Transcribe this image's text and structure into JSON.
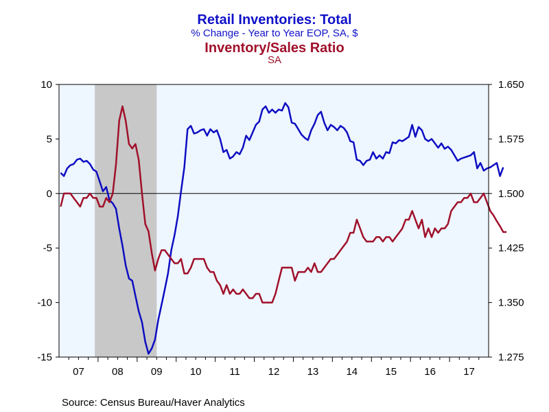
{
  "title": "Retail Inventories: Total",
  "subtitle": "% Change - Year to Year    EOP, SA, $",
  "title2": "Inventory/Sales Ratio",
  "subtitle2": "SA",
  "source": "Source:  Census Bureau/Haver Analytics",
  "colors": {
    "series1": "#0d0dc2",
    "series2": "#a0102a",
    "plot_bg": "#eef6ff",
    "recession": "#c8c8c8"
  },
  "chart_data": {
    "type": "line",
    "title": "Retail Inventories: Total",
    "x_tick_labels": [
      "07",
      "08",
      "09",
      "10",
      "11",
      "12",
      "13",
      "14",
      "15",
      "16",
      "17"
    ],
    "y_left": {
      "ticks": [
        10,
        5,
        0,
        -5,
        -10,
        -15
      ],
      "range": [
        -15,
        10
      ]
    },
    "y_right": {
      "ticks": [
        "1.650",
        "1.575",
        "1.500",
        "1.425",
        "1.350",
        "1.275"
      ],
      "range": [
        1.275,
        1.65
      ]
    },
    "recession": {
      "start": "2007-12",
      "end": "2009-06"
    },
    "start_month": "2007-01",
    "series": [
      {
        "name": "Retail Inventories: Total",
        "axis": "left",
        "values": [
          1.9,
          1.6,
          2.3,
          2.6,
          2.7,
          3.1,
          3.2,
          2.9,
          3.0,
          2.7,
          2.2,
          2.0,
          1.1,
          0.2,
          0.6,
          -0.6,
          -0.9,
          -1.4,
          -3.2,
          -4.8,
          -6.6,
          -7.8,
          -8.0,
          -9.4,
          -10.8,
          -11.8,
          -13.6,
          -14.7,
          -14.2,
          -13.4,
          -11.6,
          -10.2,
          -8.8,
          -7.3,
          -5.2,
          -3.8,
          -2.1,
          0.2,
          2.4,
          5.9,
          6.2,
          5.5,
          5.6,
          5.8,
          5.9,
          5.3,
          5.9,
          5.6,
          5.8,
          5.0,
          3.8,
          4.0,
          3.2,
          3.4,
          3.8,
          3.6,
          4.2,
          5.3,
          4.9,
          5.6,
          6.3,
          6.6,
          7.7,
          8.0,
          7.4,
          7.7,
          7.4,
          7.7,
          7.6,
          8.3,
          7.9,
          6.5,
          6.4,
          5.9,
          5.4,
          5.1,
          4.9,
          5.8,
          6.4,
          7.2,
          7.5,
          6.5,
          5.8,
          6.3,
          6.1,
          5.8,
          6.2,
          6.0,
          5.6,
          4.8,
          4.7,
          3.1,
          3.0,
          2.6,
          3.0,
          3.1,
          3.8,
          3.2,
          3.5,
          3.2,
          3.8,
          3.7,
          4.7,
          4.6,
          4.9,
          4.8,
          5.0,
          5.2,
          6.3,
          5.2,
          6.1,
          5.8,
          5.0,
          4.8,
          5.0,
          4.6,
          4.2,
          4.6,
          4.1,
          4.3,
          4.0,
          3.5,
          3.0,
          3.2,
          3.3,
          3.4,
          3.5,
          3.8,
          2.3,
          2.8,
          2.1,
          2.3,
          2.4,
          2.6,
          2.8,
          1.6,
          2.4
        ]
      },
      {
        "name": "Inventory/Sales Ratio",
        "axis": "right",
        "values": [
          1.482,
          1.5,
          1.5,
          1.5,
          1.494,
          1.488,
          1.482,
          1.494,
          1.494,
          1.5,
          1.494,
          1.494,
          1.482,
          1.482,
          1.494,
          1.488,
          1.5,
          1.54,
          1.6,
          1.62,
          1.6,
          1.568,
          1.562,
          1.568,
          1.546,
          1.5,
          1.458,
          1.448,
          1.418,
          1.394,
          1.41,
          1.422,
          1.422,
          1.416,
          1.41,
          1.404,
          1.404,
          1.41,
          1.39,
          1.39,
          1.398,
          1.41,
          1.41,
          1.41,
          1.41,
          1.398,
          1.392,
          1.392,
          1.38,
          1.374,
          1.362,
          1.374,
          1.362,
          1.368,
          1.362,
          1.362,
          1.368,
          1.362,
          1.356,
          1.356,
          1.362,
          1.362,
          1.35,
          1.35,
          1.35,
          1.35,
          1.362,
          1.38,
          1.398,
          1.398,
          1.398,
          1.398,
          1.38,
          1.392,
          1.392,
          1.392,
          1.398,
          1.392,
          1.404,
          1.392,
          1.392,
          1.398,
          1.404,
          1.41,
          1.41,
          1.416,
          1.422,
          1.428,
          1.434,
          1.446,
          1.446,
          1.464,
          1.452,
          1.44,
          1.434,
          1.434,
          1.434,
          1.44,
          1.44,
          1.434,
          1.44,
          1.44,
          1.434,
          1.44,
          1.446,
          1.452,
          1.464,
          1.464,
          1.476,
          1.464,
          1.452,
          1.464,
          1.44,
          1.452,
          1.44,
          1.452,
          1.446,
          1.452,
          1.452,
          1.458,
          1.476,
          1.482,
          1.488,
          1.488,
          1.494,
          1.494,
          1.5,
          1.488,
          1.488,
          1.494,
          1.5,
          1.488,
          1.476,
          1.47,
          1.462,
          1.455,
          1.447,
          1.447
        ]
      }
    ]
  }
}
